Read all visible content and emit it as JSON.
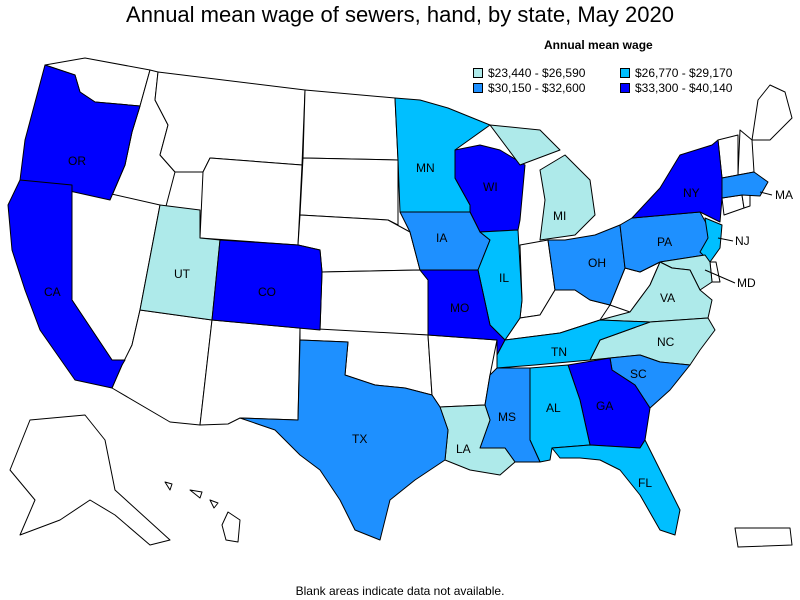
{
  "title": "Annual mean wage of sewers, hand, by state, May 2020",
  "legend": {
    "title": "Annual mean wage",
    "items": [
      {
        "label": "$23,440 - $26,590",
        "color": "#aeeaea"
      },
      {
        "label": "$26,770 - $29,170",
        "color": "#00bfff"
      },
      {
        "label": "$30,150 - $32,600",
        "color": "#1e90ff"
      },
      {
        "label": "$33,300 - $40,140",
        "color": "#0000ff"
      }
    ]
  },
  "footnote": "Blank areas indicate data not available.",
  "colors": {
    "no_data": "#ffffff",
    "border": "#000000"
  },
  "states": {
    "OR": {
      "label": "OR",
      "bin": 3
    },
    "CA": {
      "label": "CA",
      "bin": 3
    },
    "UT": {
      "label": "UT",
      "bin": 0
    },
    "CO": {
      "label": "CO",
      "bin": 3
    },
    "MN": {
      "label": "MN",
      "bin": 1
    },
    "WI": {
      "label": "WI",
      "bin": 3
    },
    "IA": {
      "label": "IA",
      "bin": 2
    },
    "IL": {
      "label": "IL",
      "bin": 1
    },
    "MO": {
      "label": "MO",
      "bin": 3
    },
    "MI": {
      "label": "MI",
      "bin": 0
    },
    "OH": {
      "label": "OH",
      "bin": 2
    },
    "PA": {
      "label": "PA",
      "bin": 2
    },
    "NY": {
      "label": "NY",
      "bin": 3
    },
    "MA": {
      "label": "MA",
      "bin": 2
    },
    "NJ": {
      "label": "NJ",
      "bin": 1
    },
    "MD": {
      "label": "MD",
      "bin": 0
    },
    "VA": {
      "label": "VA",
      "bin": 0
    },
    "NC": {
      "label": "NC",
      "bin": 0
    },
    "TN": {
      "label": "TN",
      "bin": 1
    },
    "SC": {
      "label": "SC",
      "bin": 2
    },
    "GA": {
      "label": "GA",
      "bin": 3
    },
    "AL": {
      "label": "AL",
      "bin": 1
    },
    "MS": {
      "label": "MS",
      "bin": 2
    },
    "LA": {
      "label": "LA",
      "bin": 0
    },
    "TX": {
      "label": "TX",
      "bin": 2
    },
    "FL": {
      "label": "FL",
      "bin": 1
    }
  }
}
